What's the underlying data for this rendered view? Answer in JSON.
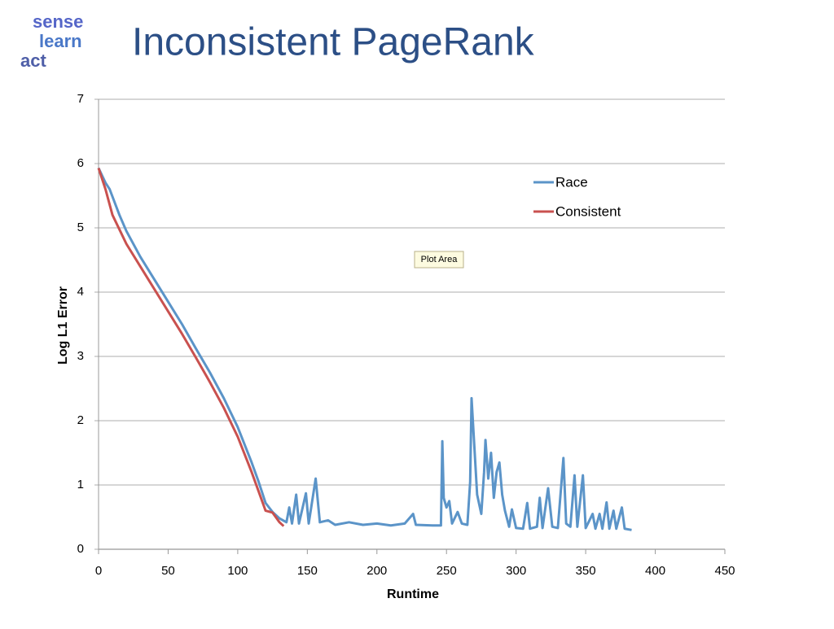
{
  "logo": {
    "words": [
      "sense",
      "learn",
      "act"
    ]
  },
  "chart_data": {
    "type": "line",
    "title": "Inconsistent PageRank",
    "x_label": "Runtime",
    "y_label": "Log L1 Error",
    "tooltip": "Plot Area",
    "xlim": [
      0,
      450
    ],
    "xticks": [
      0,
      50,
      100,
      150,
      200,
      250,
      300,
      350,
      400,
      450
    ],
    "ylim": [
      0,
      7
    ],
    "yticks": [
      0,
      1,
      2,
      3,
      4,
      5,
      6,
      7
    ],
    "grid": true,
    "legend": "upper right",
    "series": [
      {
        "name": "Race",
        "color": "#5b94c8",
        "x": [
          0,
          5,
          8,
          15,
          20,
          30,
          40,
          50,
          60,
          70,
          80,
          90,
          100,
          110,
          115,
          120,
          125,
          130,
          135,
          137,
          139,
          142,
          144,
          149,
          151,
          156,
          159,
          165,
          170,
          180,
          190,
          200,
          210,
          220,
          226,
          228,
          240,
          246,
          247,
          248,
          250,
          252,
          254,
          258,
          261,
          265,
          267,
          268,
          270,
          272,
          275,
          277,
          278,
          280,
          282,
          284,
          286,
          288,
          290,
          292,
          295,
          297,
          300,
          305,
          308,
          310,
          315,
          317,
          319,
          323,
          326,
          330,
          334,
          336,
          339,
          342,
          344,
          348,
          350,
          355,
          357,
          360,
          362,
          365,
          367,
          370,
          372,
          376,
          378,
          383
        ],
        "values": [
          5.93,
          5.7,
          5.6,
          5.2,
          4.95,
          4.55,
          4.2,
          3.85,
          3.5,
          3.12,
          2.75,
          2.35,
          1.9,
          1.35,
          1.05,
          0.72,
          0.58,
          0.48,
          0.42,
          0.65,
          0.4,
          0.85,
          0.4,
          0.87,
          0.4,
          1.1,
          0.42,
          0.45,
          0.38,
          0.42,
          0.38,
          0.4,
          0.37,
          0.4,
          0.55,
          0.38,
          0.37,
          0.37,
          1.68,
          0.8,
          0.65,
          0.75,
          0.4,
          0.58,
          0.4,
          0.38,
          1.05,
          2.35,
          1.6,
          0.85,
          0.55,
          1.2,
          1.7,
          1.1,
          1.5,
          0.8,
          1.2,
          1.35,
          0.85,
          0.6,
          0.35,
          0.62,
          0.33,
          0.32,
          0.72,
          0.32,
          0.35,
          0.8,
          0.33,
          0.95,
          0.35,
          0.33,
          1.42,
          0.4,
          0.35,
          1.15,
          0.35,
          1.15,
          0.33,
          0.55,
          0.32,
          0.55,
          0.32,
          0.73,
          0.32,
          0.6,
          0.32,
          0.65,
          0.32,
          0.3
        ]
      },
      {
        "name": "Consistent",
        "color": "#c9514f",
        "x": [
          0,
          5,
          10,
          20,
          30,
          40,
          50,
          60,
          70,
          80,
          90,
          100,
          110,
          115,
          120,
          125,
          130,
          133
        ],
        "values": [
          5.93,
          5.6,
          5.2,
          4.75,
          4.4,
          4.05,
          3.7,
          3.35,
          2.98,
          2.6,
          2.2,
          1.75,
          1.2,
          0.9,
          0.6,
          0.57,
          0.42,
          0.36
        ]
      }
    ]
  }
}
